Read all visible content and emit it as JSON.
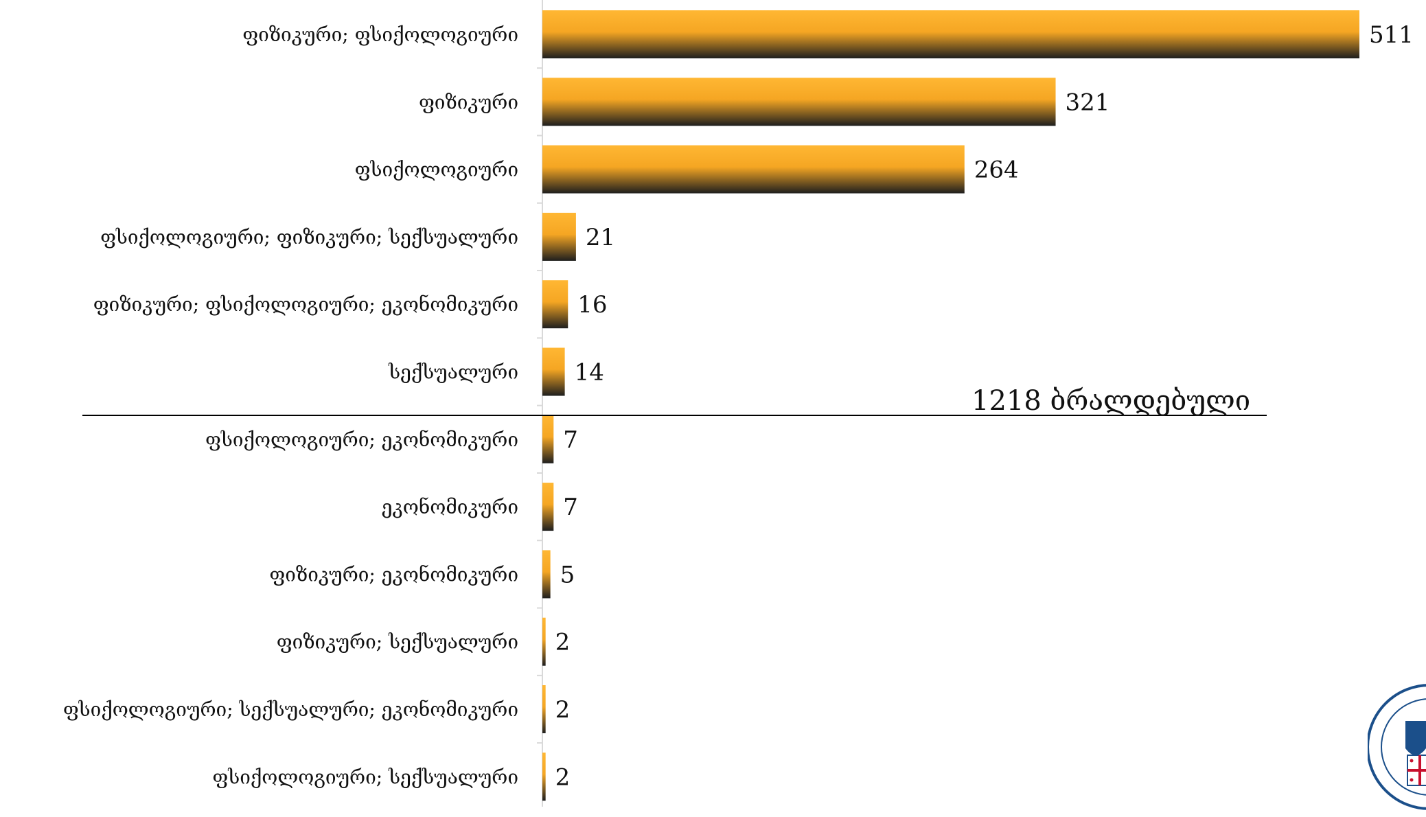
{
  "chart_data": {
    "type": "bar",
    "orientation": "horizontal",
    "categories": [
      "ფიზიკური; ფსიქოლოგიური",
      "ფიზიკური",
      "ფსიქოლოგიური",
      "ფსიქოლოგიური; ფიზიკური; სექსუალური",
      "ფიზიკური; ფსიქოლოგიური; ეკონომიკური",
      "სექსუალური",
      "ფსიქოლოგიური; ეკონომიკური",
      "ეკონომიკური",
      "ფიზიკური; ეკონომიკური",
      "ფიზიკური; სექსუალური",
      "ფსიქოლოგიური; სექსუალური; ეკონომიკური",
      "ფსიქოლოგიური; სექსუალური"
    ],
    "values": [
      511,
      321,
      264,
      21,
      16,
      14,
      7,
      7,
      5,
      2,
      2,
      2
    ],
    "title": "",
    "xlabel": "",
    "ylabel": "",
    "xlim": [
      0,
      511
    ],
    "grid": false,
    "legend": "none",
    "annotation": "1218 ბრალდებული",
    "colors": {
      "bar_top": "#FFB733",
      "bar_mid": "#F5A623",
      "bar_bottom": "#1E1E1E",
      "axis": "#d9d9d9",
      "separator": "#000000",
      "text": "#111111"
    }
  },
  "logo": {
    "name": "prosecution-seal-logo"
  }
}
